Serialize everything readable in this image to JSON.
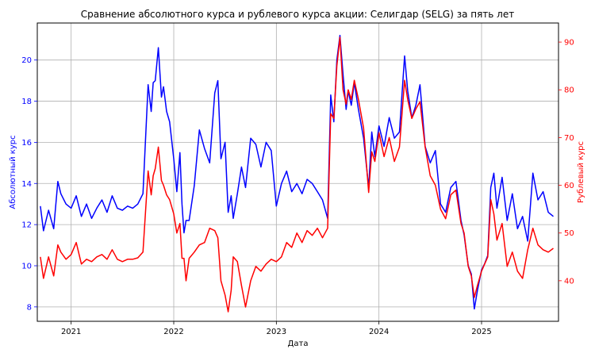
{
  "chart_data": {
    "type": "line",
    "title": "Сравнение абсолютного курса и рублевого курса акции: Селигдар (SELG) за пять лет",
    "xlabel": "Дата",
    "ylabel_left": "Абсолютный курс",
    "ylabel_right": "Рублевый курс",
    "grid": true,
    "xlim": [
      2020.67,
      2025.75
    ],
    "x_ticks": [
      2021,
      2022,
      2023,
      2024,
      2025
    ],
    "ylim_left": [
      7.3,
      21.8
    ],
    "y_ticks_left": [
      8,
      10,
      12,
      14,
      16,
      18,
      20
    ],
    "ylim_right": [
      31.5,
      94
    ],
    "y_ticks_right": [
      40,
      50,
      60,
      70,
      80,
      90
    ],
    "colors": {
      "left_axis": "#0000ff",
      "right_axis": "#ff0000",
      "grid": "#b0b0b0"
    },
    "series": [
      {
        "axis": "left",
        "color": "#0000ff",
        "x": [
          2020.7,
          2020.73,
          2020.78,
          2020.83,
          2020.87,
          2020.9,
          2020.95,
          2021.0,
          2021.05,
          2021.1,
          2021.15,
          2021.2,
          2021.25,
          2021.3,
          2021.35,
          2021.4,
          2021.45,
          2021.5,
          2021.55,
          2021.6,
          2021.65,
          2021.7,
          2021.75,
          2021.78,
          2021.8,
          2021.82,
          2021.85,
          2021.88,
          2021.9,
          2021.93,
          2021.96,
          2022.0,
          2022.03,
          2022.06,
          2022.08,
          2022.1,
          2022.12,
          2022.15,
          2022.2,
          2022.25,
          2022.3,
          2022.35,
          2022.4,
          2022.43,
          2022.46,
          2022.5,
          2022.53,
          2022.56,
          2022.58,
          2022.62,
          2022.66,
          2022.7,
          2022.75,
          2022.8,
          2022.85,
          2022.9,
          2022.95,
          2023.0,
          2023.05,
          2023.1,
          2023.15,
          2023.2,
          2023.25,
          2023.3,
          2023.35,
          2023.4,
          2023.45,
          2023.5,
          2023.53,
          2023.56,
          2023.59,
          2023.62,
          2023.65,
          2023.68,
          2023.7,
          2023.73,
          2023.76,
          2023.8,
          2023.85,
          2023.9,
          2023.93,
          2023.96,
          2024.0,
          2024.05,
          2024.1,
          2024.15,
          2024.2,
          2024.25,
          2024.28,
          2024.32,
          2024.36,
          2024.4,
          2024.45,
          2024.5,
          2024.55,
          2024.6,
          2024.65,
          2024.7,
          2024.75,
          2024.8,
          2024.83,
          2024.87,
          2024.9,
          2024.93,
          2024.96,
          2025.0,
          2025.03,
          2025.06,
          2025.09,
          2025.12,
          2025.15,
          2025.2,
          2025.25,
          2025.3,
          2025.35,
          2025.4,
          2025.45,
          2025.5,
          2025.55,
          2025.6,
          2025.65,
          2025.7
        ],
        "y": [
          12.9,
          11.7,
          12.7,
          11.8,
          14.1,
          13.5,
          13.0,
          12.8,
          13.4,
          12.4,
          13.0,
          12.3,
          12.8,
          13.2,
          12.6,
          13.4,
          12.8,
          12.7,
          12.9,
          12.8,
          13.0,
          13.5,
          18.8,
          17.5,
          18.9,
          19.0,
          20.6,
          18.2,
          18.7,
          17.5,
          17.0,
          15.2,
          13.6,
          15.5,
          13.0,
          11.6,
          12.2,
          12.2,
          13.9,
          16.6,
          15.7,
          15.0,
          18.4,
          19.0,
          15.2,
          16.0,
          12.6,
          13.4,
          12.3,
          13.5,
          14.8,
          13.8,
          16.2,
          15.9,
          14.8,
          16.0,
          15.6,
          12.9,
          14.0,
          14.6,
          13.6,
          14.0,
          13.5,
          14.2,
          14.0,
          13.6,
          13.2,
          12.3,
          18.3,
          17.0,
          20.0,
          21.2,
          19.3,
          17.6,
          18.5,
          17.8,
          18.9,
          17.6,
          16.2,
          13.8,
          16.5,
          15.3,
          16.8,
          15.8,
          17.2,
          16.2,
          16.5,
          20.2,
          18.5,
          17.2,
          17.8,
          18.8,
          15.8,
          15.0,
          15.6,
          13.0,
          12.6,
          13.8,
          14.1,
          12.2,
          11.5,
          10.0,
          9.6,
          7.9,
          8.8,
          9.8,
          10.1,
          10.5,
          13.8,
          14.5,
          12.8,
          14.3,
          12.2,
          13.5,
          11.8,
          12.4,
          11.2,
          14.5,
          13.2,
          13.6,
          12.6,
          12.4
        ]
      },
      {
        "axis": "right",
        "color": "#ff0000",
        "x": [
          2020.7,
          2020.73,
          2020.78,
          2020.83,
          2020.87,
          2020.9,
          2020.95,
          2021.0,
          2021.05,
          2021.1,
          2021.15,
          2021.2,
          2021.25,
          2021.3,
          2021.35,
          2021.4,
          2021.45,
          2021.5,
          2021.55,
          2021.6,
          2021.65,
          2021.7,
          2021.75,
          2021.78,
          2021.8,
          2021.82,
          2021.85,
          2021.88,
          2021.9,
          2021.93,
          2021.96,
          2022.0,
          2022.03,
          2022.06,
          2022.08,
          2022.1,
          2022.12,
          2022.15,
          2022.2,
          2022.25,
          2022.3,
          2022.35,
          2022.4,
          2022.43,
          2022.46,
          2022.5,
          2022.53,
          2022.56,
          2022.58,
          2022.62,
          2022.66,
          2022.7,
          2022.75,
          2022.8,
          2022.85,
          2022.9,
          2022.95,
          2023.0,
          2023.05,
          2023.1,
          2023.15,
          2023.2,
          2023.25,
          2023.3,
          2023.35,
          2023.4,
          2023.45,
          2023.5,
          2023.53,
          2023.56,
          2023.59,
          2023.62,
          2023.65,
          2023.68,
          2023.7,
          2023.73,
          2023.76,
          2023.8,
          2023.85,
          2023.9,
          2023.93,
          2023.96,
          2024.0,
          2024.05,
          2024.1,
          2024.15,
          2024.2,
          2024.25,
          2024.28,
          2024.32,
          2024.36,
          2024.4,
          2024.45,
          2024.5,
          2024.55,
          2024.6,
          2024.65,
          2024.7,
          2024.75,
          2024.8,
          2024.83,
          2024.87,
          2024.9,
          2024.93,
          2024.96,
          2025.0,
          2025.03,
          2025.06,
          2025.09,
          2025.12,
          2025.15,
          2025.2,
          2025.25,
          2025.3,
          2025.35,
          2025.4,
          2025.45,
          2025.5,
          2025.55,
          2025.6,
          2025.65,
          2025.7
        ],
        "y": [
          45.0,
          40.5,
          45.0,
          41.0,
          47.5,
          46.0,
          44.5,
          45.5,
          48.0,
          43.5,
          44.5,
          44.0,
          45.0,
          45.5,
          44.5,
          46.5,
          44.5,
          44.0,
          44.5,
          44.5,
          44.8,
          46.0,
          63.0,
          58.0,
          62.0,
          63.5,
          68.0,
          61.0,
          60.0,
          58.0,
          57.0,
          54.0,
          50.0,
          52.0,
          44.7,
          44.7,
          40.0,
          44.7,
          46.0,
          47.5,
          48.0,
          51.0,
          50.5,
          49.0,
          40.0,
          37.0,
          33.5,
          38.0,
          45.0,
          44.0,
          39.0,
          34.5,
          40.0,
          43.0,
          42.0,
          43.5,
          44.5,
          44.0,
          45.0,
          48.0,
          47.0,
          50.0,
          48.0,
          50.5,
          49.5,
          51.0,
          49.0,
          51.0,
          75.0,
          74.0,
          85.0,
          91.0,
          80.0,
          77.0,
          80.0,
          78.0,
          82.0,
          78.0,
          72.0,
          58.5,
          67.0,
          65.0,
          71.0,
          66.0,
          70.0,
          65.0,
          68.0,
          82.0,
          78.0,
          74.0,
          76.0,
          77.5,
          68.0,
          62.0,
          60.0,
          55.0,
          53.0,
          58.0,
          59.0,
          52.0,
          50.0,
          43.0,
          41.0,
          36.5,
          39.0,
          42.0,
          43.5,
          45.0,
          57.0,
          54.0,
          48.5,
          52.0,
          43.0,
          46.0,
          42.0,
          40.5,
          46.5,
          51.0,
          47.5,
          46.5,
          46.0,
          46.8
        ]
      }
    ]
  }
}
